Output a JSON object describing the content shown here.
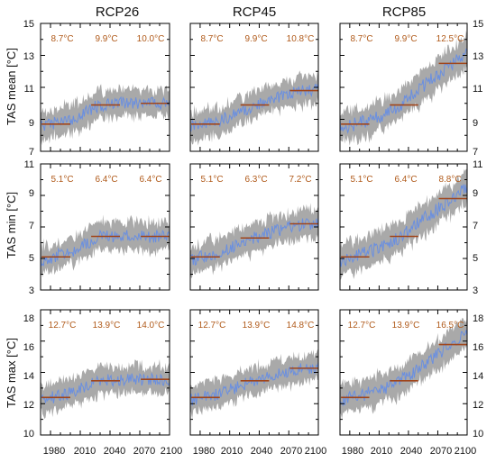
{
  "colors": {
    "ensemble_range": "#a9a9a9",
    "series": "#6a8fe0",
    "period_mean": "#a0461c",
    "annotation": "#b05a1a"
  },
  "columns": [
    "RCP26",
    "RCP45",
    "RCP85"
  ],
  "rows": [
    {
      "label": "TAS mean [°C]",
      "ylim": [
        7,
        15
      ],
      "yticks": [
        "7",
        "9",
        "11",
        "13",
        "15"
      ]
    },
    {
      "label": "TAS min [°C]",
      "ylim": [
        3,
        11
      ],
      "yticks": [
        "3",
        "5",
        "7",
        "9",
        "11"
      ]
    },
    {
      "label": "TAS max [°C]",
      "ylim": [
        10,
        19
      ],
      "yticks": [
        "10",
        "12",
        "14",
        "16",
        "18"
      ]
    }
  ],
  "xticks": [
    "1980",
    "2010",
    "2040",
    "2070",
    "2100"
  ],
  "chart_data": [
    {
      "type": "line",
      "row": 0,
      "col": 0,
      "scenario": "RCP26",
      "xlim": [
        1970,
        2100
      ],
      "ylim": [
        7,
        15
      ],
      "periods": [
        {
          "x": [
            1971,
            2000
          ],
          "mean": 8.7,
          "label": "8.7°C"
        },
        {
          "x": [
            2021,
            2050
          ],
          "mean": 9.9,
          "label": "9.9°C"
        },
        {
          "x": [
            2071,
            2100
          ],
          "mean": 10.0,
          "label": "10.0°C"
        }
      ],
      "trend": [
        [
          1970,
          8.6
        ],
        [
          2000,
          9.0
        ],
        [
          2030,
          9.9
        ],
        [
          2060,
          10.0
        ],
        [
          2100,
          10.0
        ]
      ],
      "spread": 0.9
    },
    {
      "type": "line",
      "row": 0,
      "col": 1,
      "scenario": "RCP45",
      "xlim": [
        1970,
        2100
      ],
      "ylim": [
        7,
        15
      ],
      "periods": [
        {
          "x": [
            1971,
            2000
          ],
          "mean": 8.7,
          "label": "8.7°C"
        },
        {
          "x": [
            2021,
            2050
          ],
          "mean": 9.9,
          "label": "9.9°C"
        },
        {
          "x": [
            2071,
            2100
          ],
          "mean": 10.8,
          "label": "10.8°C"
        }
      ],
      "trend": [
        [
          1970,
          8.5
        ],
        [
          2000,
          8.9
        ],
        [
          2035,
          9.9
        ],
        [
          2070,
          10.6
        ],
        [
          2100,
          10.9
        ]
      ],
      "spread": 0.9
    },
    {
      "type": "line",
      "row": 0,
      "col": 2,
      "scenario": "RCP85",
      "xlim": [
        1970,
        2100
      ],
      "ylim": [
        7,
        15
      ],
      "periods": [
        {
          "x": [
            1971,
            2000
          ],
          "mean": 8.7,
          "label": "8.7°C"
        },
        {
          "x": [
            2021,
            2050
          ],
          "mean": 9.9,
          "label": "9.9°C"
        },
        {
          "x": [
            2071,
            2100
          ],
          "mean": 12.5,
          "label": "12.5°C"
        }
      ],
      "trend": [
        [
          1970,
          8.5
        ],
        [
          2000,
          8.9
        ],
        [
          2030,
          9.8
        ],
        [
          2060,
          11.3
        ],
        [
          2085,
          12.5
        ],
        [
          2100,
          13.3
        ]
      ],
      "spread": 1.0
    },
    {
      "type": "line",
      "row": 1,
      "col": 0,
      "scenario": "RCP26",
      "xlim": [
        1970,
        2100
      ],
      "ylim": [
        3,
        11
      ],
      "periods": [
        {
          "x": [
            1971,
            2000
          ],
          "mean": 5.1,
          "label": "5.1°C"
        },
        {
          "x": [
            2021,
            2050
          ],
          "mean": 6.4,
          "label": "6.4°C"
        },
        {
          "x": [
            2071,
            2100
          ],
          "mean": 6.4,
          "label": "6.4°C"
        }
      ],
      "trend": [
        [
          1970,
          4.9
        ],
        [
          2000,
          5.4
        ],
        [
          2030,
          6.4
        ],
        [
          2060,
          6.4
        ],
        [
          2100,
          6.4
        ]
      ],
      "spread": 0.9
    },
    {
      "type": "line",
      "row": 1,
      "col": 1,
      "scenario": "RCP45",
      "xlim": [
        1970,
        2100
      ],
      "ylim": [
        3,
        11
      ],
      "periods": [
        {
          "x": [
            1971,
            2000
          ],
          "mean": 5.1,
          "label": "5.1°C"
        },
        {
          "x": [
            2021,
            2050
          ],
          "mean": 6.3,
          "label": "6.3°C"
        },
        {
          "x": [
            2071,
            2100
          ],
          "mean": 7.2,
          "label": "7.2°C"
        }
      ],
      "trend": [
        [
          1970,
          4.9
        ],
        [
          2000,
          5.4
        ],
        [
          2035,
          6.3
        ],
        [
          2070,
          7.0
        ],
        [
          2100,
          7.3
        ]
      ],
      "spread": 0.9
    },
    {
      "type": "line",
      "row": 1,
      "col": 2,
      "scenario": "RCP85",
      "xlim": [
        1970,
        2100
      ],
      "ylim": [
        3,
        11
      ],
      "periods": [
        {
          "x": [
            1971,
            2000
          ],
          "mean": 5.1,
          "label": "5.1°C"
        },
        {
          "x": [
            2021,
            2050
          ],
          "mean": 6.4,
          "label": "6.4°C"
        },
        {
          "x": [
            2071,
            2100
          ],
          "mean": 8.8,
          "label": "8.8°C"
        }
      ],
      "trend": [
        [
          1970,
          4.9
        ],
        [
          2000,
          5.4
        ],
        [
          2030,
          6.3
        ],
        [
          2060,
          7.7
        ],
        [
          2085,
          8.8
        ],
        [
          2100,
          9.6
        ]
      ],
      "spread": 1.0
    },
    {
      "type": "line",
      "row": 2,
      "col": 0,
      "scenario": "RCP26",
      "xlim": [
        1970,
        2100
      ],
      "ylim": [
        10,
        19
      ],
      "periods": [
        {
          "x": [
            1971,
            2000
          ],
          "mean": 12.7,
          "label": "12.7°C"
        },
        {
          "x": [
            2021,
            2050
          ],
          "mean": 13.9,
          "label": "13.9°C"
        },
        {
          "x": [
            2071,
            2100
          ],
          "mean": 14.0,
          "label": "14.0°C"
        }
      ],
      "trend": [
        [
          1970,
          12.5
        ],
        [
          2000,
          13.0
        ],
        [
          2030,
          13.9
        ],
        [
          2060,
          14.0
        ],
        [
          2100,
          14.0
        ]
      ],
      "spread": 1.0
    },
    {
      "type": "line",
      "row": 2,
      "col": 1,
      "scenario": "RCP45",
      "xlim": [
        1970,
        2100
      ],
      "ylim": [
        10,
        19
      ],
      "periods": [
        {
          "x": [
            1971,
            2000
          ],
          "mean": 12.7,
          "label": "12.7°C"
        },
        {
          "x": [
            2021,
            2050
          ],
          "mean": 13.9,
          "label": "13.9°C"
        },
        {
          "x": [
            2071,
            2100
          ],
          "mean": 14.8,
          "label": "14.8°C"
        }
      ],
      "trend": [
        [
          1970,
          12.5
        ],
        [
          2000,
          13.0
        ],
        [
          2035,
          13.9
        ],
        [
          2070,
          14.6
        ],
        [
          2100,
          14.9
        ]
      ],
      "spread": 1.0
    },
    {
      "type": "line",
      "row": 2,
      "col": 2,
      "scenario": "RCP85",
      "xlim": [
        1970,
        2100
      ],
      "ylim": [
        10,
        19
      ],
      "periods": [
        {
          "x": [
            1971,
            2000
          ],
          "mean": 12.7,
          "label": "12.7°C"
        },
        {
          "x": [
            2021,
            2050
          ],
          "mean": 13.9,
          "label": "13.9°C"
        },
        {
          "x": [
            2071,
            2100
          ],
          "mean": 16.5,
          "label": "16.5°C"
        }
      ],
      "trend": [
        [
          1970,
          12.5
        ],
        [
          2000,
          13.0
        ],
        [
          2030,
          13.8
        ],
        [
          2060,
          15.3
        ],
        [
          2085,
          16.5
        ],
        [
          2100,
          17.4
        ]
      ],
      "spread": 1.1
    }
  ]
}
